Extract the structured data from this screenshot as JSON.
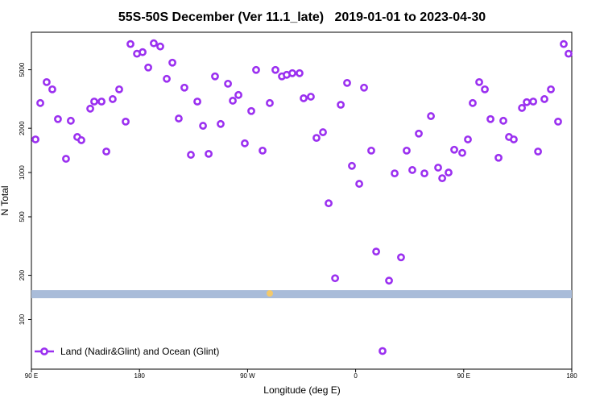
{
  "chart_data": {
    "type": "scatter",
    "title": "55S-50S December (Ver 11.1_late)   2019-01-01 to 2023-04-30",
    "xlabel": "Longitude (deg E)",
    "ylabel": "N Total",
    "xlim": [
      90,
      540
    ],
    "ylim": [
      46,
      9000
    ],
    "ylog": true,
    "xticks": [
      {
        "value": 90,
        "label": "90 E"
      },
      180,
      {
        "value": 270,
        "label": "90 W"
      },
      {
        "value": 360,
        "label": "0"
      },
      {
        "value": 450,
        "label": "90 E"
      },
      {
        "value": 540,
        "label": "180"
      }
    ],
    "yticks": [
      100,
      200,
      500,
      1000,
      2000,
      5000
    ],
    "legend": "bottom-left",
    "x": [
      93.4,
      97.4,
      102.7,
      107.4,
      112.1,
      118.8,
      122.8,
      128.2,
      131.6,
      139.0,
      142.3,
      148.4,
      152.4,
      157.7,
      163.1,
      168.5,
      172.5,
      177.9,
      182.6,
      187.3,
      191.9,
      197.3,
      202.7,
      207.4,
      212.7,
      217.4,
      222.8,
      228.2,
      232.9,
      237.6,
      242.9,
      247.6,
      253.7,
      257.7,
      262.4,
      267.7,
      273.1,
      277.1,
      282.5,
      288.5,
      293.2,
      298.6,
      302.6,
      307.3,
      313.3,
      316.7,
      322.7,
      327.4,
      332.8,
      337.5,
      342.9,
      347.6,
      352.9,
      356.9,
      363.0,
      367.0,
      373.0,
      377.1,
      382.4,
      387.8,
      392.5,
      397.8,
      402.5,
      407.2,
      412.6,
      417.3,
      422.7,
      428.7,
      432.1,
      437.4,
      442.1,
      448.8,
      453.5,
      457.5,
      462.9,
      467.6,
      472.3,
      479.0,
      483.0,
      487.7,
      491.7,
      498.5,
      502.5,
      507.9,
      511.9,
      517.2,
      522.6,
      528.6,
      533.3,
      537.3
    ],
    "series": [
      {
        "name": "Land (Nadir&Glint) and Ocean (Glint)",
        "color": "#9b30f0",
        "values": [
          1680,
          2970,
          4120,
          3680,
          2310,
          1240,
          2250,
          1745,
          1660,
          2720,
          3040,
          3040,
          1390,
          3160,
          3680,
          2220,
          7480,
          6430,
          6590,
          5180,
          7570,
          7200,
          4340,
          5590,
          2330,
          3780,
          1320,
          3040,
          2080,
          1340,
          4510,
          2140,
          4020,
          3080,
          3370,
          1580,
          2620,
          4990,
          1410,
          2970,
          4990,
          4510,
          4620,
          4740,
          4740,
          3200,
          3280,
          1720,
          1880,
          618,
          191,
          2890,
          4070,
          1110,
          838,
          3780,
          1410,
          290,
          61.1,
          184,
          987,
          265,
          1410,
          1040,
          1840,
          987,
          2420,
          1080,
          915,
          1000,
          1430,
          1360,
          1680,
          2970,
          4120,
          3680,
          2310,
          1260,
          2250,
          1745,
          1680,
          2750,
          3010,
          3040,
          1390,
          3160,
          3680,
          2220,
          7480,
          6430
        ]
      }
    ]
  }
}
